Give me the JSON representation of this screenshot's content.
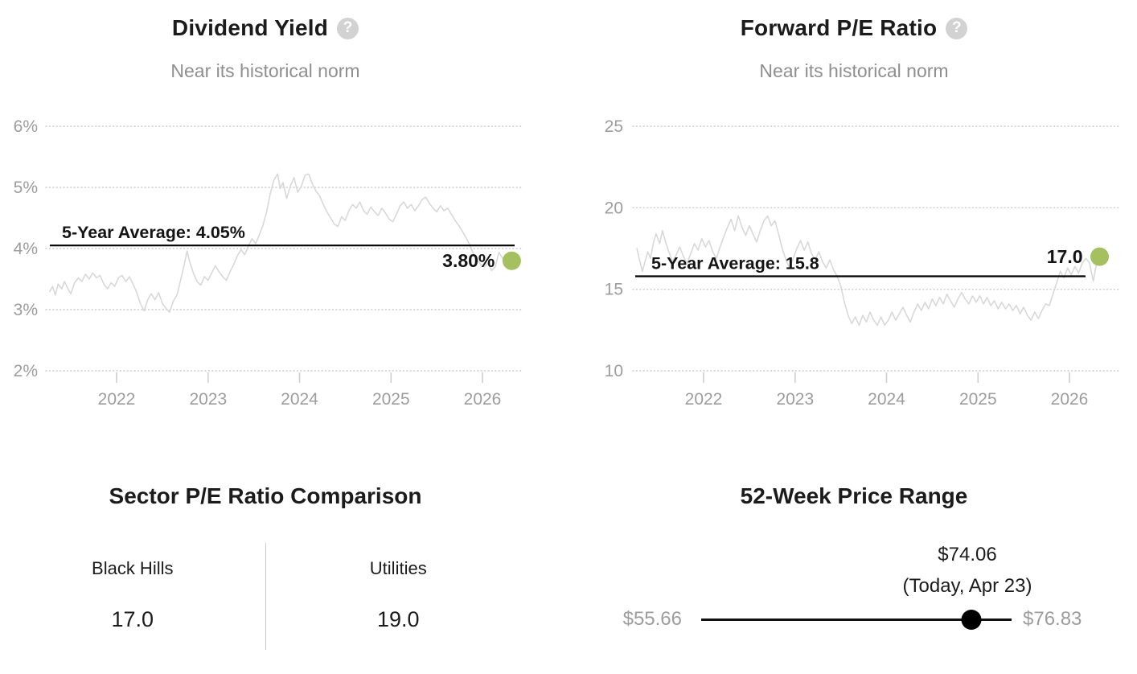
{
  "icons": {
    "help_glyph": "?"
  },
  "colors": {
    "accent_green": "#a5c05e",
    "trace_gray": "#d8d8d8",
    "grid_gray": "#cbcbcb",
    "axis_text": "#9d9d9d",
    "text_dark": "#1b1b1b",
    "subtitle_gray": "#8f8f8f",
    "divider_gray": "#cccccc",
    "average_line": "#000000"
  },
  "chart_data": [
    {
      "type": "line",
      "panel": "dividend-yield",
      "title": "Dividend Yield",
      "subtitle": "Near its historical norm",
      "xlabel": "",
      "ylabel": "",
      "ylim": [
        2,
        6
      ],
      "grid": "dotted-horizontal",
      "legend_position": "none",
      "yticks": [
        {
          "value": 6,
          "label": "6%"
        },
        {
          "value": 5,
          "label": "5%"
        },
        {
          "value": 4,
          "label": "4%"
        },
        {
          "value": 3,
          "label": "3%"
        },
        {
          "value": 2,
          "label": "2%"
        }
      ],
      "xticks": [
        {
          "value": 2022,
          "label": "2022"
        },
        {
          "value": 2023,
          "label": "2023"
        },
        {
          "value": 2024,
          "label": "2024"
        },
        {
          "value": 2025,
          "label": "2025"
        },
        {
          "value": 2026,
          "label": "2026"
        }
      ],
      "average": {
        "value": 4.05,
        "label": "5-Year Average: 4.05%"
      },
      "current": {
        "value": 3.8,
        "label": "3.80%"
      },
      "line_color": "#d8d8d8",
      "dot_color": "#a5c05e",
      "series": {
        "name": "Dividend Yield",
        "points": [
          [
            2021.27,
            3.3
          ],
          [
            2021.3,
            3.38
          ],
          [
            2021.33,
            3.24
          ],
          [
            2021.36,
            3.42
          ],
          [
            2021.4,
            3.34
          ],
          [
            2021.43,
            3.46
          ],
          [
            2021.46,
            3.36
          ],
          [
            2021.5,
            3.26
          ],
          [
            2021.54,
            3.44
          ],
          [
            2021.58,
            3.52
          ],
          [
            2021.62,
            3.46
          ],
          [
            2021.66,
            3.58
          ],
          [
            2021.7,
            3.5
          ],
          [
            2021.74,
            3.6
          ],
          [
            2021.78,
            3.52
          ],
          [
            2021.82,
            3.56
          ],
          [
            2021.86,
            3.42
          ],
          [
            2021.9,
            3.34
          ],
          [
            2021.94,
            3.44
          ],
          [
            2021.98,
            3.38
          ],
          [
            2022.02,
            3.52
          ],
          [
            2022.06,
            3.56
          ],
          [
            2022.1,
            3.46
          ],
          [
            2022.14,
            3.54
          ],
          [
            2022.18,
            3.42
          ],
          [
            2022.22,
            3.28
          ],
          [
            2022.26,
            3.1
          ],
          [
            2022.3,
            2.98
          ],
          [
            2022.34,
            3.16
          ],
          [
            2022.38,
            3.26
          ],
          [
            2022.42,
            3.16
          ],
          [
            2022.46,
            3.28
          ],
          [
            2022.5,
            3.1
          ],
          [
            2022.54,
            3.02
          ],
          [
            2022.58,
            2.96
          ],
          [
            2022.62,
            3.14
          ],
          [
            2022.66,
            3.24
          ],
          [
            2022.7,
            3.48
          ],
          [
            2022.74,
            3.74
          ],
          [
            2022.77,
            3.96
          ],
          [
            2022.8,
            3.78
          ],
          [
            2022.84,
            3.6
          ],
          [
            2022.88,
            3.46
          ],
          [
            2022.92,
            3.4
          ],
          [
            2022.96,
            3.54
          ],
          [
            2023.0,
            3.48
          ],
          [
            2023.04,
            3.6
          ],
          [
            2023.08,
            3.72
          ],
          [
            2023.12,
            3.62
          ],
          [
            2023.16,
            3.54
          ],
          [
            2023.2,
            3.48
          ],
          [
            2023.24,
            3.62
          ],
          [
            2023.28,
            3.74
          ],
          [
            2023.32,
            3.88
          ],
          [
            2023.36,
            3.98
          ],
          [
            2023.4,
            3.9
          ],
          [
            2023.44,
            4.04
          ],
          [
            2023.48,
            4.16
          ],
          [
            2023.52,
            4.08
          ],
          [
            2023.56,
            4.22
          ],
          [
            2023.6,
            4.38
          ],
          [
            2023.64,
            4.6
          ],
          [
            2023.68,
            4.9
          ],
          [
            2023.72,
            5.12
          ],
          [
            2023.76,
            5.22
          ],
          [
            2023.79,
            4.98
          ],
          [
            2023.82,
            5.08
          ],
          [
            2023.86,
            4.82
          ],
          [
            2023.9,
            5.02
          ],
          [
            2023.94,
            5.16
          ],
          [
            2023.98,
            4.92
          ],
          [
            2024.02,
            5.02
          ],
          [
            2024.06,
            5.2
          ],
          [
            2024.1,
            5.22
          ],
          [
            2024.14,
            5.06
          ],
          [
            2024.18,
            4.94
          ],
          [
            2024.22,
            4.86
          ],
          [
            2024.26,
            4.72
          ],
          [
            2024.3,
            4.6
          ],
          [
            2024.34,
            4.5
          ],
          [
            2024.38,
            4.4
          ],
          [
            2024.42,
            4.36
          ],
          [
            2024.46,
            4.52
          ],
          [
            2024.5,
            4.46
          ],
          [
            2024.54,
            4.62
          ],
          [
            2024.58,
            4.72
          ],
          [
            2024.62,
            4.66
          ],
          [
            2024.66,
            4.76
          ],
          [
            2024.7,
            4.62
          ],
          [
            2024.74,
            4.56
          ],
          [
            2024.78,
            4.68
          ],
          [
            2024.82,
            4.6
          ],
          [
            2024.86,
            4.54
          ],
          [
            2024.9,
            4.66
          ],
          [
            2024.94,
            4.58
          ],
          [
            2024.98,
            4.48
          ],
          [
            2025.02,
            4.44
          ],
          [
            2025.06,
            4.56
          ],
          [
            2025.1,
            4.7
          ],
          [
            2025.14,
            4.76
          ],
          [
            2025.18,
            4.66
          ],
          [
            2025.22,
            4.72
          ],
          [
            2025.26,
            4.62
          ],
          [
            2025.3,
            4.7
          ],
          [
            2025.34,
            4.8
          ],
          [
            2025.38,
            4.84
          ],
          [
            2025.42,
            4.74
          ],
          [
            2025.46,
            4.66
          ],
          [
            2025.5,
            4.6
          ],
          [
            2025.54,
            4.7
          ],
          [
            2025.58,
            4.62
          ],
          [
            2025.62,
            4.66
          ],
          [
            2025.66,
            4.56
          ],
          [
            2025.7,
            4.46
          ],
          [
            2025.74,
            4.38
          ],
          [
            2025.78,
            4.28
          ],
          [
            2025.82,
            4.18
          ],
          [
            2025.86,
            4.06
          ],
          [
            2025.9,
            3.92
          ],
          [
            2025.94,
            3.82
          ],
          [
            2025.98,
            3.74
          ],
          [
            2026.02,
            3.7
          ],
          [
            2026.06,
            3.76
          ],
          [
            2026.1,
            3.64
          ],
          [
            2026.14,
            3.7
          ],
          [
            2026.18,
            3.94
          ],
          [
            2026.22,
            3.84
          ],
          [
            2026.26,
            3.72
          ],
          [
            2026.32,
            3.8
          ]
        ]
      }
    },
    {
      "type": "line",
      "panel": "forward-pe",
      "title": "Forward P/E Ratio",
      "subtitle": "Near its historical norm",
      "xlabel": "",
      "ylabel": "",
      "ylim": [
        10,
        25
      ],
      "grid": "dotted-horizontal",
      "legend_position": "none",
      "yticks": [
        {
          "value": 25,
          "label": "25"
        },
        {
          "value": 20,
          "label": "20"
        },
        {
          "value": 15,
          "label": "15"
        },
        {
          "value": 10,
          "label": "10"
        }
      ],
      "xticks": [
        {
          "value": 2022,
          "label": "2022"
        },
        {
          "value": 2023,
          "label": "2023"
        },
        {
          "value": 2024,
          "label": "2024"
        },
        {
          "value": 2025,
          "label": "2025"
        },
        {
          "value": 2026,
          "label": "2026"
        }
      ],
      "average": {
        "value": 15.8,
        "label": "5-Year Average: 15.8"
      },
      "current": {
        "value": 17.0,
        "label": "17.0"
      },
      "line_color": "#d8d8d8",
      "dot_color": "#a5c05e",
      "series": {
        "name": "Forward P/E Ratio",
        "points": [
          [
            2021.27,
            17.5
          ],
          [
            2021.3,
            16.8
          ],
          [
            2021.33,
            16.1
          ],
          [
            2021.36,
            16.7
          ],
          [
            2021.39,
            17.3
          ],
          [
            2021.42,
            16.9
          ],
          [
            2021.45,
            17.8
          ],
          [
            2021.48,
            18.4
          ],
          [
            2021.52,
            17.8
          ],
          [
            2021.55,
            18.6
          ],
          [
            2021.58,
            18.0
          ],
          [
            2021.62,
            17.3
          ],
          [
            2021.66,
            16.7
          ],
          [
            2021.7,
            17.1
          ],
          [
            2021.74,
            17.6
          ],
          [
            2021.78,
            17.0
          ],
          [
            2021.82,
            16.6
          ],
          [
            2021.86,
            17.2
          ],
          [
            2021.9,
            17.8
          ],
          [
            2021.94,
            17.4
          ],
          [
            2021.98,
            18.1
          ],
          [
            2022.02,
            17.6
          ],
          [
            2022.06,
            18.0
          ],
          [
            2022.1,
            17.3
          ],
          [
            2022.14,
            16.9
          ],
          [
            2022.18,
            17.6
          ],
          [
            2022.22,
            18.2
          ],
          [
            2022.26,
            18.8
          ],
          [
            2022.3,
            19.3
          ],
          [
            2022.34,
            18.6
          ],
          [
            2022.38,
            19.5
          ],
          [
            2022.42,
            18.8
          ],
          [
            2022.46,
            18.3
          ],
          [
            2022.5,
            18.9
          ],
          [
            2022.54,
            18.4
          ],
          [
            2022.58,
            17.9
          ],
          [
            2022.62,
            18.6
          ],
          [
            2022.66,
            19.2
          ],
          [
            2022.7,
            19.5
          ],
          [
            2022.74,
            18.9
          ],
          [
            2022.78,
            19.2
          ],
          [
            2022.82,
            18.4
          ],
          [
            2022.86,
            17.5
          ],
          [
            2022.9,
            16.8
          ],
          [
            2022.94,
            16.3
          ],
          [
            2022.98,
            16.9
          ],
          [
            2023.02,
            17.5
          ],
          [
            2023.06,
            18.0
          ],
          [
            2023.1,
            17.4
          ],
          [
            2023.14,
            17.9
          ],
          [
            2023.18,
            17.2
          ],
          [
            2023.22,
            16.8
          ],
          [
            2023.26,
            17.3
          ],
          [
            2023.3,
            16.7
          ],
          [
            2023.34,
            16.3
          ],
          [
            2023.38,
            16.8
          ],
          [
            2023.42,
            16.2
          ],
          [
            2023.46,
            15.8
          ],
          [
            2023.5,
            15.2
          ],
          [
            2023.54,
            14.2
          ],
          [
            2023.58,
            13.4
          ],
          [
            2023.62,
            12.9
          ],
          [
            2023.66,
            13.3
          ],
          [
            2023.7,
            12.8
          ],
          [
            2023.74,
            13.4
          ],
          [
            2023.78,
            13.0
          ],
          [
            2023.82,
            13.6
          ],
          [
            2023.86,
            13.1
          ],
          [
            2023.9,
            12.8
          ],
          [
            2023.94,
            13.3
          ],
          [
            2023.98,
            12.8
          ],
          [
            2024.02,
            13.1
          ],
          [
            2024.06,
            13.6
          ],
          [
            2024.1,
            13.1
          ],
          [
            2024.14,
            13.5
          ],
          [
            2024.18,
            13.9
          ],
          [
            2024.22,
            13.4
          ],
          [
            2024.26,
            13.0
          ],
          [
            2024.3,
            13.6
          ],
          [
            2024.34,
            14.1
          ],
          [
            2024.38,
            13.7
          ],
          [
            2024.42,
            14.2
          ],
          [
            2024.46,
            13.8
          ],
          [
            2024.5,
            14.4
          ],
          [
            2024.54,
            14.0
          ],
          [
            2024.58,
            14.5
          ],
          [
            2024.62,
            14.1
          ],
          [
            2024.66,
            14.7
          ],
          [
            2024.7,
            14.3
          ],
          [
            2024.74,
            13.9
          ],
          [
            2024.78,
            14.4
          ],
          [
            2024.82,
            14.8
          ],
          [
            2024.86,
            14.4
          ],
          [
            2024.9,
            14.1
          ],
          [
            2024.94,
            14.6
          ],
          [
            2024.98,
            14.2
          ],
          [
            2025.02,
            14.6
          ],
          [
            2025.06,
            14.1
          ],
          [
            2025.1,
            14.5
          ],
          [
            2025.14,
            14.0
          ],
          [
            2025.18,
            14.3
          ],
          [
            2025.22,
            13.8
          ],
          [
            2025.26,
            14.2
          ],
          [
            2025.3,
            13.8
          ],
          [
            2025.34,
            14.1
          ],
          [
            2025.38,
            13.7
          ],
          [
            2025.42,
            14.0
          ],
          [
            2025.46,
            13.5
          ],
          [
            2025.5,
            13.9
          ],
          [
            2025.54,
            13.4
          ],
          [
            2025.58,
            13.1
          ],
          [
            2025.62,
            13.6
          ],
          [
            2025.66,
            13.2
          ],
          [
            2025.7,
            13.7
          ],
          [
            2025.74,
            14.1
          ],
          [
            2025.78,
            14.0
          ],
          [
            2025.82,
            14.7
          ],
          [
            2025.86,
            15.4
          ],
          [
            2025.9,
            16.1
          ],
          [
            2025.94,
            15.7
          ],
          [
            2025.98,
            16.3
          ],
          [
            2026.02,
            15.9
          ],
          [
            2026.06,
            16.4
          ],
          [
            2026.1,
            16.0
          ],
          [
            2026.14,
            16.6
          ],
          [
            2026.18,
            16.9
          ],
          [
            2026.22,
            16.6
          ],
          [
            2026.26,
            15.5
          ],
          [
            2026.3,
            16.7
          ],
          [
            2026.33,
            17.0
          ]
        ]
      }
    },
    {
      "type": "table",
      "panel": "sector-pe-comparison",
      "title": "Sector P/E Ratio Comparison",
      "columns": [
        {
          "label": "Black Hills",
          "value": "17.0"
        },
        {
          "label": "Utilities",
          "value": "19.0"
        }
      ]
    },
    {
      "type": "range",
      "panel": "52-week-price-range",
      "title": "52-Week Price Range",
      "low": {
        "value": 55.66,
        "label": "$55.66"
      },
      "high": {
        "value": 76.83,
        "label": "$76.83"
      },
      "current": {
        "value": 74.06,
        "label": "$74.06",
        "sublabel": "(Today, Apr 23)"
      }
    }
  ]
}
